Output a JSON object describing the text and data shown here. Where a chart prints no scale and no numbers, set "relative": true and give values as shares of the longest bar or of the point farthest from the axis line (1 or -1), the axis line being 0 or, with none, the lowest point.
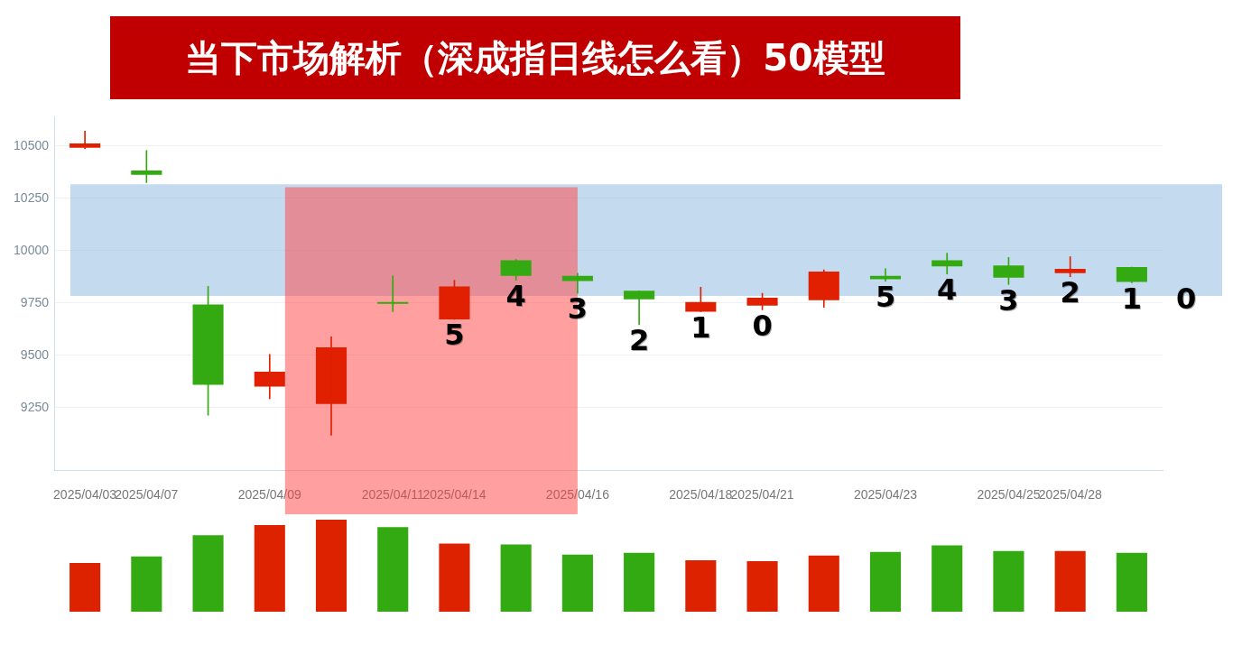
{
  "chart_data": [
    {
      "type": "candlestick",
      "title": "当下市场解析（深成指日线怎么看）50模型",
      "categories": [
        "2025/04/03",
        "2025/04/07",
        null,
        "2025/04/09",
        null,
        "2025/04/11",
        "2025/04/14",
        null,
        "2025/04/16",
        null,
        "2025/04/18",
        "2025/04/21",
        null,
        "2025/04/23",
        null,
        "2025/04/25",
        "2025/04/28",
        null
      ],
      "ohlc": [
        [
          10492,
          10571,
          10487,
          10512
        ],
        [
          10383,
          10479,
          10325,
          10362
        ],
        [
          9742,
          9829,
          9213,
          9358
        ],
        [
          9350,
          9504,
          9292,
          9421
        ],
        [
          9267,
          9588,
          9117,
          9537
        ],
        [
          9750,
          9879,
          9708,
          9746
        ],
        [
          9671,
          9858,
          9671,
          9829
        ],
        [
          9954,
          9958,
          9858,
          9879
        ],
        [
          9879,
          9892,
          9796,
          9854
        ],
        [
          9808,
          9808,
          9646,
          9767
        ],
        [
          9708,
          9825,
          9708,
          9754
        ],
        [
          9737,
          9796,
          9717,
          9775
        ],
        [
          9763,
          9908,
          9729,
          9900
        ],
        [
          9879,
          9913,
          9854,
          9863
        ],
        [
          9954,
          9988,
          9888,
          9925
        ],
        [
          9929,
          9967,
          9838,
          9871
        ],
        [
          9892,
          9971,
          9875,
          9913
        ],
        [
          9921,
          9921,
          9846,
          9850
        ]
      ],
      "colors": [
        "#e02000",
        "#33aa11",
        "#33aa11",
        "#e02000",
        "#e02000",
        "#33aa11",
        "#e02000",
        "#33aa11",
        "#33aa11",
        "#33aa11",
        "#e02000",
        "#e02000",
        "#e02000",
        "#33aa11",
        "#33aa11",
        "#33aa11",
        "#e02000",
        "#33aa11"
      ],
      "value_labels": [
        null,
        null,
        null,
        null,
        null,
        null,
        "5",
        "4",
        "3",
        "2",
        "1",
        "0",
        null,
        "5",
        "4",
        "3",
        "2",
        "1"
      ],
      "annotations": [
        "0"
      ],
      "ylim": [
        8950,
        10640
      ],
      "yticks": [
        9250,
        9500,
        9750,
        10000,
        10250,
        10500
      ],
      "grid": "y",
      "bands": [
        {
          "axis": "y",
          "from": 9783,
          "to": 10317,
          "color": "#8ab6e0"
        },
        {
          "axis": "x",
          "from": "2025/04/09",
          "to": "2025/04/16",
          "color": "#ff4040"
        }
      ]
    },
    {
      "type": "bar",
      "relative": true,
      "categories": [
        null,
        null,
        null,
        null,
        null,
        null,
        null,
        null,
        null,
        null,
        null,
        null,
        null,
        null,
        null,
        null,
        null,
        null
      ],
      "values": [
        0.53,
        0.6,
        0.83,
        0.94,
        1,
        0.92,
        0.74,
        0.73,
        0.62,
        0.64,
        0.56,
        0.55,
        0.61,
        0.65,
        0.72,
        0.66,
        0.66,
        0.64
      ],
      "colors": [
        "#dd2200",
        "#33aa11",
        "#33aa11",
        "#dd2200",
        "#dd2200",
        "#33aa11",
        "#dd2200",
        "#33aa11",
        "#33aa11",
        "#33aa11",
        "#dd2200",
        "#dd2200",
        "#dd2200",
        "#33aa11",
        "#33aa11",
        "#33aa11",
        "#dd2200",
        "#33aa11"
      ]
    }
  ]
}
